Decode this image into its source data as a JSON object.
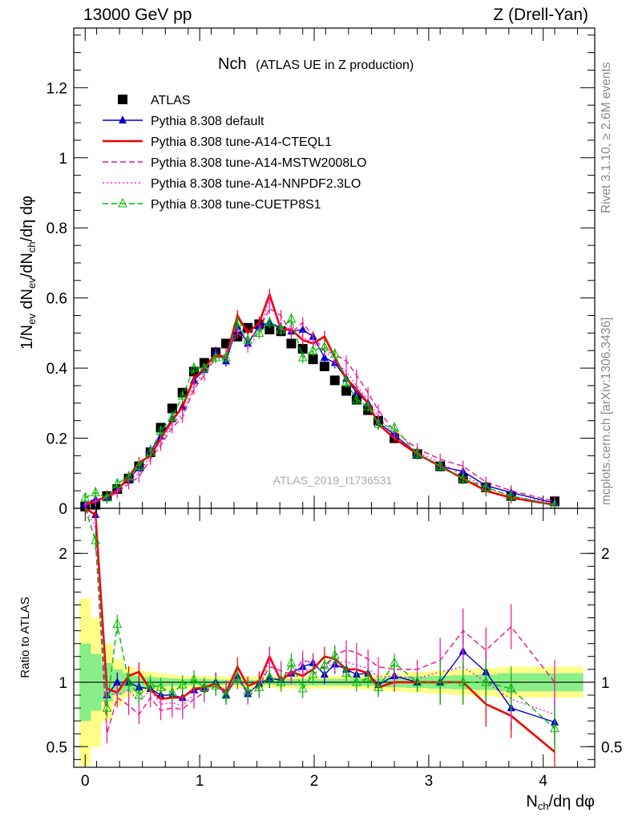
{
  "header": {
    "left": "13000 GeV pp",
    "right": "Z (Drell-Yan)"
  },
  "side_labels": {
    "rivet": "Rivet 3.1.10, ≥ 2.6M events",
    "mcplots": "mcplots.cern.ch [arXiv:1306.3436]"
  },
  "chart_data": [
    {
      "type": "line",
      "title_main": "Nch",
      "title_sub": "(ATLAS UE in Z production)",
      "ylabel": "1/N_ev dN_ev/dN_ch/dη dφ",
      "xlabel": "N_ch/dη dφ",
      "watermark": "ATLAS_2019_I1736531",
      "xlim": [
        -0.1,
        4.45
      ],
      "ylim": [
        0,
        1.37
      ],
      "xticks": [
        0,
        1,
        2,
        3,
        4
      ],
      "yticks": [
        0,
        0.2,
        0.4,
        0.6,
        0.8,
        1,
        1.2
      ],
      "ytick_labels": [
        "0",
        "0.2",
        "0.4",
        "0.6",
        "0.8",
        "1",
        "1.2"
      ],
      "legend_position": "top-left",
      "series": [
        {
          "name": "ATLAS",
          "color": "#000000",
          "style": "markers-square",
          "x": [
            0.0,
            0.09,
            0.19,
            0.28,
            0.38,
            0.47,
            0.57,
            0.66,
            0.76,
            0.85,
            0.95,
            1.04,
            1.14,
            1.23,
            1.33,
            1.42,
            1.52,
            1.61,
            1.71,
            1.8,
            1.9,
            1.99,
            2.09,
            2.18,
            2.28,
            2.37,
            2.47,
            2.56,
            2.7,
            2.9,
            3.1,
            3.3,
            3.5,
            3.72,
            4.1
          ],
          "y": [
            0.005,
            0.01,
            0.035,
            0.055,
            0.085,
            0.12,
            0.16,
            0.23,
            0.285,
            0.33,
            0.39,
            0.415,
            0.445,
            0.47,
            0.49,
            0.515,
            0.525,
            0.51,
            0.505,
            0.47,
            0.455,
            0.425,
            0.405,
            0.365,
            0.335,
            0.31,
            0.28,
            0.25,
            0.2,
            0.155,
            0.12,
            0.085,
            0.06,
            0.035,
            0.02
          ]
        },
        {
          "name": "Pythia 8.308 default",
          "color": "#0000cc",
          "style": "solid-triangle",
          "x": [
            0.0,
            0.09,
            0.19,
            0.28,
            0.38,
            0.47,
            0.57,
            0.66,
            0.76,
            0.85,
            0.95,
            1.04,
            1.14,
            1.23,
            1.33,
            1.42,
            1.52,
            1.61,
            1.71,
            1.8,
            1.9,
            1.99,
            2.09,
            2.18,
            2.28,
            2.37,
            2.47,
            2.56,
            2.7,
            2.9,
            3.1,
            3.3,
            3.5,
            3.72,
            4.1
          ],
          "y": [
            0.012,
            0.025,
            0.03,
            0.055,
            0.085,
            0.115,
            0.165,
            0.205,
            0.255,
            0.29,
            0.365,
            0.395,
            0.445,
            0.42,
            0.52,
            0.47,
            0.52,
            0.53,
            0.515,
            0.505,
            0.51,
            0.49,
            0.43,
            0.415,
            0.37,
            0.33,
            0.3,
            0.245,
            0.21,
            0.155,
            0.12,
            0.105,
            0.065,
            0.045,
            0.015
          ]
        },
        {
          "name": "Pythia 8.308 tune-A14-CTEQL1",
          "color": "#ee0000",
          "style": "solid-thick",
          "x": [
            0.0,
            0.09,
            0.19,
            0.28,
            0.38,
            0.47,
            0.57,
            0.66,
            0.76,
            0.85,
            0.95,
            1.04,
            1.14,
            1.23,
            1.33,
            1.42,
            1.52,
            1.61,
            1.71,
            1.8,
            1.9,
            1.99,
            2.09,
            2.18,
            2.28,
            2.37,
            2.47,
            2.56,
            2.7,
            2.9,
            3.1,
            3.3,
            3.5,
            3.72,
            4.1
          ],
          "y": [
            0.01,
            0.02,
            0.035,
            0.05,
            0.09,
            0.13,
            0.15,
            0.2,
            0.25,
            0.29,
            0.37,
            0.4,
            0.44,
            0.43,
            0.55,
            0.5,
            0.53,
            0.61,
            0.51,
            0.51,
            0.48,
            0.47,
            0.49,
            0.43,
            0.37,
            0.34,
            0.3,
            0.24,
            0.2,
            0.155,
            0.12,
            0.085,
            0.05,
            0.03,
            0.01
          ]
        },
        {
          "name": "Pythia 8.308 tune-A14-MSTW2008LO",
          "color": "#ee1188",
          "style": "dashed",
          "x": [
            0.0,
            0.09,
            0.19,
            0.28,
            0.38,
            0.47,
            0.57,
            0.66,
            0.76,
            0.85,
            0.95,
            1.04,
            1.14,
            1.23,
            1.33,
            1.42,
            1.52,
            1.61,
            1.71,
            1.8,
            1.9,
            1.99,
            2.09,
            2.18,
            2.28,
            2.37,
            2.47,
            2.56,
            2.7,
            2.9,
            3.1,
            3.3,
            3.5,
            3.72,
            4.1
          ],
          "y": [
            0.015,
            0.02,
            0.03,
            0.045,
            0.07,
            0.09,
            0.14,
            0.18,
            0.23,
            0.26,
            0.34,
            0.38,
            0.43,
            0.44,
            0.5,
            0.48,
            0.51,
            0.57,
            0.55,
            0.5,
            0.53,
            0.49,
            0.45,
            0.44,
            0.42,
            0.38,
            0.33,
            0.28,
            0.22,
            0.17,
            0.14,
            0.12,
            0.075,
            0.05,
            0.02
          ]
        },
        {
          "name": "Pythia 8.308 tune-A14-NNPDF2.3LO",
          "color": "#ee22cc",
          "style": "dotted",
          "x": [
            0.0,
            0.09,
            0.19,
            0.28,
            0.38,
            0.47,
            0.57,
            0.66,
            0.76,
            0.85,
            0.95,
            1.04,
            1.14,
            1.23,
            1.33,
            1.42,
            1.52,
            1.61,
            1.71,
            1.8,
            1.9,
            1.99,
            2.09,
            2.18,
            2.28,
            2.37,
            2.47,
            2.56,
            2.7,
            2.9,
            3.1,
            3.3,
            3.5,
            3.72,
            4.1
          ],
          "y": [
            0.012,
            0.022,
            0.032,
            0.05,
            0.08,
            0.1,
            0.15,
            0.19,
            0.24,
            0.27,
            0.35,
            0.39,
            0.43,
            0.43,
            0.51,
            0.46,
            0.5,
            0.6,
            0.51,
            0.52,
            0.49,
            0.47,
            0.45,
            0.42,
            0.39,
            0.35,
            0.31,
            0.26,
            0.21,
            0.16,
            0.13,
            0.095,
            0.06,
            0.035,
            0.015
          ]
        },
        {
          "name": "Pythia 8.308 tune-CUETP8S1",
          "color": "#00bb00",
          "style": "dashed-triangle-open",
          "x": [
            0.0,
            0.09,
            0.19,
            0.28,
            0.38,
            0.47,
            0.57,
            0.66,
            0.76,
            0.85,
            0.95,
            1.04,
            1.14,
            1.23,
            1.33,
            1.42,
            1.52,
            1.61,
            1.71,
            1.8,
            1.9,
            1.99,
            2.09,
            2.18,
            2.28,
            2.37,
            2.47,
            2.56,
            2.7,
            2.9,
            3.1,
            3.3,
            3.5,
            3.72,
            4.1
          ],
          "y": [
            0.03,
            0.045,
            0.03,
            0.07,
            0.09,
            0.12,
            0.16,
            0.22,
            0.26,
            0.32,
            0.4,
            0.4,
            0.43,
            0.43,
            0.53,
            0.48,
            0.5,
            0.53,
            0.51,
            0.54,
            0.43,
            0.45,
            0.46,
            0.44,
            0.36,
            0.31,
            0.29,
            0.24,
            0.23,
            0.155,
            0.12,
            0.085,
            0.06,
            0.035,
            0.01
          ]
        }
      ]
    },
    {
      "type": "line",
      "ylabel": "Ratio to ATLAS",
      "xlabel": "N_ch/dη dφ",
      "xlim": [
        -0.1,
        4.45
      ],
      "ylim": [
        0.34,
        2.35
      ],
      "xticks": [
        0,
        1,
        2,
        3,
        4
      ],
      "xtick_labels": [
        "0",
        "1",
        "2",
        "3",
        "4"
      ],
      "yticks": [
        0.5,
        1,
        2
      ],
      "ytick_labels": [
        "0.5",
        "1",
        "2"
      ],
      "reference_line": 1,
      "uncertainty_bands": [
        {
          "name": "syst",
          "color": "#ffff88",
          "x_edges": [
            -0.05,
            0.05,
            0.14,
            0.24,
            0.33,
            0.43,
            0.52,
            0.62,
            0.71,
            0.81,
            0.9,
            1.0,
            1.09,
            1.19,
            1.28,
            1.38,
            1.47,
            1.57,
            1.66,
            1.76,
            1.85,
            1.95,
            2.04,
            2.14,
            2.23,
            2.33,
            2.42,
            2.52,
            2.61,
            2.8,
            3.0,
            3.2,
            3.4,
            3.6,
            3.85,
            4.35
          ],
          "half_width": [
            0.65,
            0.5,
            0.3,
            0.18,
            0.12,
            0.09,
            0.08,
            0.07,
            0.06,
            0.05,
            0.05,
            0.05,
            0.045,
            0.045,
            0.045,
            0.045,
            0.045,
            0.045,
            0.05,
            0.05,
            0.05,
            0.05,
            0.05,
            0.05,
            0.05,
            0.05,
            0.06,
            0.06,
            0.07,
            0.08,
            0.09,
            0.1,
            0.11,
            0.12,
            0.12
          ]
        },
        {
          "name": "stat",
          "color": "#88ee88",
          "x_edges": [
            -0.05,
            0.05,
            0.14,
            0.24,
            0.33,
            0.43,
            0.52,
            0.62,
            0.71,
            0.81,
            0.9,
            1.0,
            1.09,
            1.19,
            1.28,
            1.38,
            1.47,
            1.57,
            1.66,
            1.76,
            1.85,
            1.95,
            2.04,
            2.14,
            2.23,
            2.33,
            2.42,
            2.52,
            2.61,
            2.8,
            3.0,
            3.2,
            3.4,
            3.6,
            3.85,
            4.35
          ],
          "half_width": [
            0.3,
            0.22,
            0.15,
            0.1,
            0.07,
            0.05,
            0.04,
            0.035,
            0.03,
            0.025,
            0.025,
            0.025,
            0.02,
            0.02,
            0.02,
            0.02,
            0.02,
            0.02,
            0.025,
            0.025,
            0.025,
            0.025,
            0.025,
            0.025,
            0.025,
            0.03,
            0.03,
            0.03,
            0.04,
            0.045,
            0.05,
            0.055,
            0.06,
            0.07,
            0.07
          ]
        }
      ],
      "series": [
        {
          "name": "Pythia 8.308 default",
          "color": "#0000cc",
          "x": [
            0.09,
            0.19,
            0.28,
            0.38,
            0.47,
            0.57,
            0.66,
            0.76,
            0.85,
            0.95,
            1.04,
            1.14,
            1.23,
            1.33,
            1.42,
            1.52,
            1.61,
            1.71,
            1.8,
            1.9,
            1.99,
            2.09,
            2.18,
            2.28,
            2.37,
            2.47,
            2.56,
            2.7,
            2.9,
            3.1,
            3.3,
            3.5,
            3.72,
            4.1
          ],
          "y": [
            2.3,
            0.9,
            1.0,
            1.0,
            0.96,
            0.95,
            0.9,
            0.9,
            0.88,
            0.94,
            0.95,
            1.0,
            0.9,
            1.05,
            0.91,
            0.99,
            1.03,
            1.02,
            1.07,
            1.12,
            1.15,
            1.06,
            1.14,
            1.1,
            1.06,
            1.07,
            0.98,
            1.05,
            1.0,
            1.0,
            1.24,
            1.08,
            0.8,
            0.69
          ]
        },
        {
          "name": "Pythia 8.308 tune-A14-CTEQL1",
          "color": "#ee0000",
          "x": [
            0.09,
            0.19,
            0.28,
            0.38,
            0.47,
            0.57,
            0.66,
            0.76,
            0.85,
            0.95,
            1.04,
            1.14,
            1.23,
            1.33,
            1.42,
            1.52,
            1.61,
            1.71,
            1.8,
            1.9,
            1.99,
            2.09,
            2.18,
            2.28,
            2.37,
            2.47,
            2.56,
            2.7,
            2.9,
            3.1,
            3.3,
            3.5,
            3.72,
            4.1
          ],
          "y": [
            2.3,
            0.95,
            0.92,
            1.05,
            1.08,
            0.94,
            0.87,
            0.88,
            0.88,
            0.95,
            0.96,
            0.99,
            0.92,
            1.12,
            0.97,
            1.01,
            1.2,
            1.01,
            1.08,
            1.05,
            1.1,
            1.2,
            1.18,
            1.1,
            1.1,
            1.07,
            0.96,
            1.0,
            1.0,
            1.0,
            1.0,
            0.83,
            0.74,
            0.46
          ]
        },
        {
          "name": "Pythia 8.308 tune-A14-MSTW2008LO",
          "color": "#ee1188",
          "x": [
            0.09,
            0.19,
            0.28,
            0.38,
            0.47,
            0.57,
            0.66,
            0.76,
            0.85,
            0.95,
            1.04,
            1.14,
            1.23,
            1.33,
            1.42,
            1.52,
            1.61,
            1.71,
            1.8,
            1.9,
            1.99,
            2.09,
            2.18,
            2.28,
            2.37,
            2.47,
            2.56,
            2.7,
            2.9,
            3.1,
            3.3,
            3.5,
            3.72,
            4.1
          ],
          "y": [
            2.1,
            0.6,
            0.88,
            0.82,
            0.75,
            0.88,
            0.78,
            0.8,
            0.79,
            0.87,
            0.92,
            0.97,
            0.94,
            1.02,
            0.93,
            0.97,
            1.12,
            1.09,
            1.06,
            1.17,
            1.15,
            1.11,
            1.21,
            1.25,
            1.23,
            1.18,
            1.12,
            1.1,
            1.1,
            1.17,
            1.4,
            1.25,
            1.43,
            1.0
          ]
        },
        {
          "name": "Pythia 8.308 tune-A14-NNPDF2.3LO",
          "color": "#ee22cc",
          "x": [
            0.09,
            0.19,
            0.28,
            0.38,
            0.47,
            0.57,
            0.66,
            0.76,
            0.85,
            0.95,
            1.04,
            1.14,
            1.23,
            1.33,
            1.42,
            1.52,
            1.61,
            1.71,
            1.8,
            1.9,
            1.99,
            2.09,
            2.18,
            2.28,
            2.37,
            2.47,
            2.56,
            2.7,
            2.9,
            3.1,
            3.3,
            3.5,
            3.72,
            4.1
          ],
          "y": [
            2.2,
            0.92,
            0.9,
            0.94,
            0.85,
            0.94,
            0.83,
            0.84,
            0.82,
            0.9,
            0.94,
            0.97,
            0.92,
            1.04,
            0.9,
            0.95,
            1.18,
            1.01,
            1.1,
            1.08,
            1.1,
            1.11,
            1.15,
            1.16,
            1.13,
            1.11,
            1.04,
            1.05,
            1.03,
            1.08,
            1.12,
            1.0,
            0.87,
            0.75
          ]
        },
        {
          "name": "Pythia 8.308 tune-CUETP8S1",
          "color": "#00bb00",
          "x": [
            0.09,
            0.19,
            0.28,
            0.38,
            0.47,
            0.57,
            0.66,
            0.76,
            0.85,
            0.95,
            1.04,
            1.14,
            1.23,
            1.33,
            1.42,
            1.52,
            1.61,
            1.71,
            1.8,
            1.9,
            1.99,
            2.09,
            2.18,
            2.28,
            2.37,
            2.47,
            2.56,
            2.7,
            2.9,
            3.1,
            3.3,
            3.5,
            3.72,
            4.1
          ],
          "y": [
            2.1,
            0.8,
            1.45,
            1.0,
            0.9,
            0.98,
            0.96,
            0.92,
            0.98,
            1.02,
            0.96,
            0.97,
            0.9,
            1.04,
            0.93,
            0.96,
            1.04,
            1.0,
            1.15,
            0.95,
            1.06,
            1.13,
            1.21,
            1.07,
            1.0,
            1.03,
            0.96,
            1.15,
            1.0,
            1.0,
            1.0,
            1.0,
            0.95,
            0.64
          ]
        }
      ]
    }
  ]
}
